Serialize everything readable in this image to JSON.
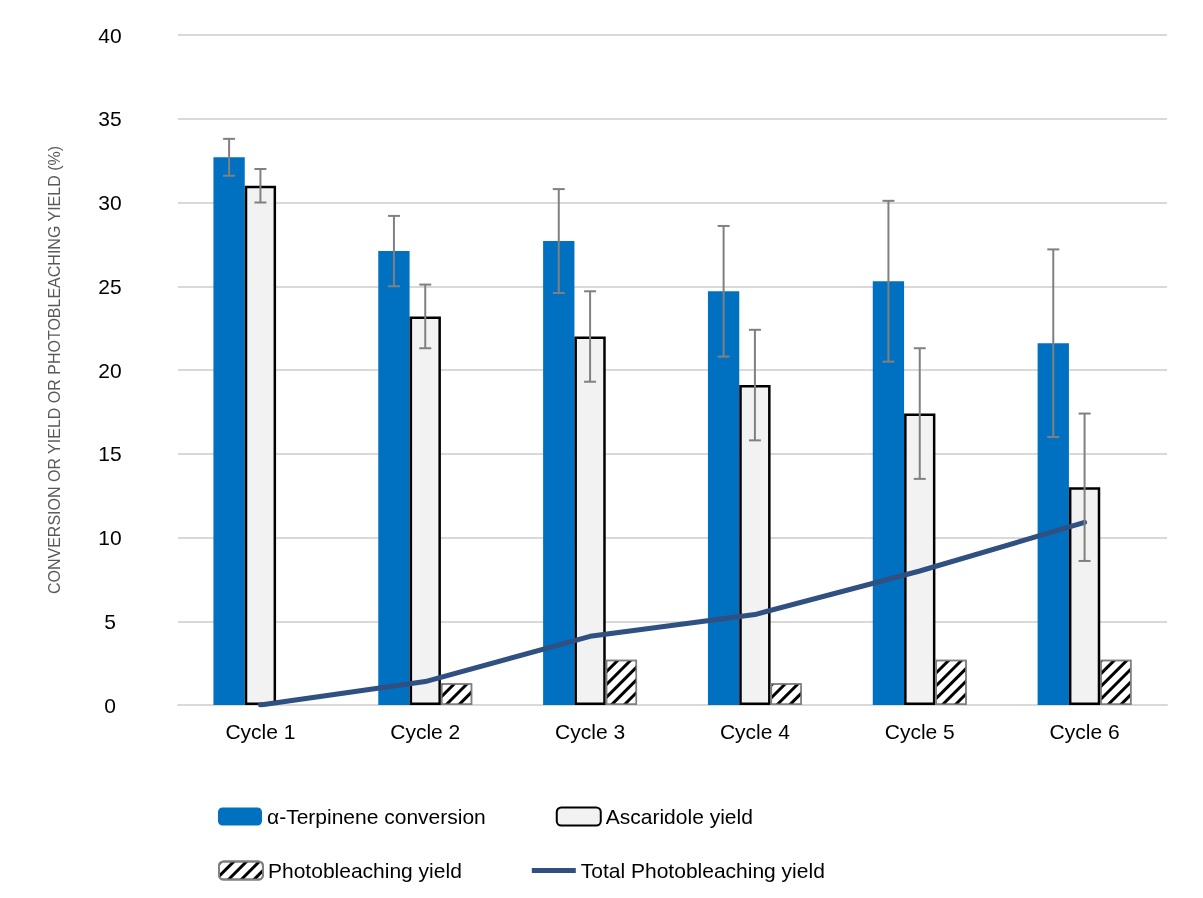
{
  "chart_data": {
    "type": "bar",
    "ylabel": "CONVERSION OR YIELD OR PHOTOBLEACHING YIELD (%)",
    "categories": [
      "Cycle 1",
      "Cycle 2",
      "Cycle 3",
      "Cycle 4",
      "Cycle 5",
      "Cycle 6"
    ],
    "series": [
      {
        "name": "α-Terpinene conversion",
        "color": "#0070c0",
        "values": [
          32.7,
          27.1,
          27.7,
          24.7,
          25.3,
          21.6
        ],
        "errors": [
          1.1,
          2.1,
          3.1,
          3.9,
          4.8,
          5.6
        ]
      },
      {
        "name": "Ascaridole yield",
        "color": "#f2f2f2",
        "values": [
          31.0,
          23.2,
          22.0,
          19.1,
          17.4,
          13.0
        ],
        "errors": [
          1.0,
          1.9,
          2.7,
          3.3,
          3.9,
          4.4
        ]
      },
      {
        "name": "Photobleaching yield",
        "color": "#ffffff",
        "values": [
          0,
          1.3,
          2.7,
          1.3,
          2.7,
          2.7
        ]
      },
      {
        "name": "Total Photobleaching yield",
        "type": "line",
        "color": "#2f5080",
        "values": [
          0,
          1.4,
          4.1,
          5.4,
          8.0,
          10.9
        ]
      }
    ],
    "ylim": [
      0,
      40
    ],
    "yticks": [
      0,
      5,
      10,
      15,
      20,
      25,
      30,
      35,
      40
    ],
    "grid": "y",
    "legend": "bottom",
    "marker": "none"
  }
}
